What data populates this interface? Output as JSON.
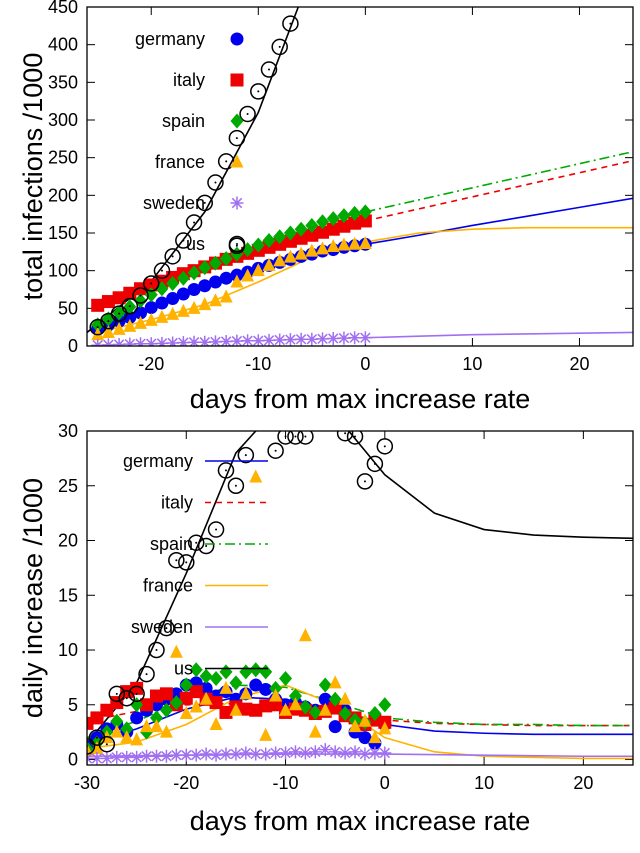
{
  "chart_data": [
    {
      "type": "scatter",
      "xlabel": "days from max increase rate",
      "ylabel": "total infections /1000",
      "xlim": [
        -26,
        25
      ],
      "ylim": [
        0,
        450
      ],
      "xticks": [
        "-20",
        "-10",
        "0",
        "10",
        "20"
      ],
      "xtick_values": [
        -20,
        -10,
        0,
        10,
        20
      ],
      "yticks": [
        "0",
        "50",
        "100",
        "150",
        "200",
        "250",
        "300",
        "350",
        "400",
        "450"
      ],
      "ytick_values": [
        0,
        50,
        100,
        150,
        200,
        250,
        300,
        350,
        400,
        450
      ],
      "legend_position": "top-left",
      "series": [
        {
          "name": "germany",
          "color": "#0000ee",
          "marker": "circle",
          "x": [
            -25,
            -24,
            -23,
            -22,
            -21,
            -20,
            -19,
            -18,
            -17,
            -16,
            -15,
            -14,
            -13,
            -12,
            -11,
            -10,
            -9,
            -8,
            -7,
            -6,
            -5,
            -4,
            -3,
            -2,
            -1,
            0
          ],
          "y": [
            24,
            28,
            33,
            38,
            44,
            51,
            57,
            63,
            69,
            75,
            80,
            85,
            90,
            94,
            98,
            103,
            107,
            111,
            115,
            119,
            122,
            126,
            128,
            131,
            133,
            135
          ],
          "fit_x": [
            0,
            5,
            10,
            15,
            20,
            25
          ],
          "fit_y": [
            135,
            147,
            160,
            172,
            184,
            196
          ],
          "fit_style": "solid"
        },
        {
          "name": "italy",
          "color": "#ee0000",
          "marker": "square",
          "x": [
            -25,
            -24,
            -23,
            -22,
            -21,
            -20,
            -19,
            -18,
            -17,
            -16,
            -15,
            -14,
            -13,
            -12,
            -11,
            -10,
            -9,
            -8,
            -7,
            -6,
            -5,
            -4,
            -3,
            -2,
            -1,
            0
          ],
          "y": [
            54,
            59,
            64,
            70,
            76,
            81,
            86,
            91,
            96,
            100,
            105,
            110,
            115,
            119,
            123,
            127,
            131,
            135,
            139,
            143,
            147,
            151,
            155,
            159,
            163,
            166
          ],
          "fit_x": [
            0,
            5,
            10,
            15,
            20,
            25
          ],
          "fit_y": [
            166,
            182,
            198,
            214,
            230,
            246
          ],
          "fit_style": "dashed"
        },
        {
          "name": "spain",
          "color": "#00aa00",
          "marker": "diamond",
          "x": [
            -25,
            -24,
            -23,
            -22,
            -21,
            -20,
            -19,
            -18,
            -17,
            -16,
            -15,
            -14,
            -13,
            -12,
            -11,
            -10,
            -9,
            -8,
            -7,
            -6,
            -5,
            -4,
            -3,
            -2,
            -1,
            0
          ],
          "y": [
            28,
            36,
            44,
            52,
            60,
            68,
            76,
            83,
            90,
            97,
            104,
            110,
            116,
            122,
            128,
            134,
            140,
            145,
            150,
            155,
            160,
            165,
            169,
            173,
            176,
            178
          ],
          "fit_x": [
            0,
            5,
            10,
            15,
            20,
            25
          ],
          "fit_y": [
            178,
            194,
            210,
            226,
            242,
            258
          ],
          "fit_style": "dashdot"
        },
        {
          "name": "france",
          "color": "#ffb300",
          "marker": "triangle",
          "x": [
            -25,
            -24,
            -23,
            -22,
            -21,
            -20,
            -19,
            -18,
            -17,
            -16,
            -15,
            -14,
            -13,
            -12,
            -11,
            -10,
            -9,
            -8,
            -7,
            -6,
            -5,
            -4,
            -3,
            -2,
            -1,
            0
          ],
          "y": [
            15,
            18,
            22,
            26,
            30,
            34,
            38,
            42,
            46,
            50,
            55,
            60,
            65,
            85,
            93,
            100,
            107,
            113,
            118,
            122,
            126,
            129,
            132,
            134,
            135,
            136
          ],
          "fit_x": [
            -25,
            -20,
            -15,
            -10,
            -5,
            0,
            5,
            10,
            15,
            20,
            25
          ],
          "fit_y": [
            18,
            35,
            55,
            85,
            118,
            138,
            150,
            155,
            157,
            157,
            157
          ],
          "fit_style": "solid"
        },
        {
          "name": "sweden",
          "color": "#a070f0",
          "marker": "star",
          "x": [
            -25,
            -24,
            -23,
            -22,
            -21,
            -20,
            -19,
            -18,
            -17,
            -16,
            -15,
            -14,
            -13,
            -12,
            -11,
            -10,
            -9,
            -8,
            -7,
            -6,
            -5,
            -4,
            -3,
            -2,
            -1,
            0
          ],
          "y": [
            1,
            1.5,
            2,
            2.5,
            3,
            3,
            3.5,
            4,
            4.5,
            5,
            5,
            5.5,
            6,
            6.5,
            7,
            7,
            7.5,
            8,
            8.5,
            9,
            9,
            9.5,
            10,
            10.5,
            11,
            11
          ],
          "fit_x": [
            0,
            5,
            10,
            15,
            20,
            25
          ],
          "fit_y": [
            11,
            13,
            15,
            16,
            17,
            18
          ],
          "fit_style": "solid"
        },
        {
          "name": "us",
          "color": "#000000",
          "marker": "open-circle",
          "x": [
            -25,
            -24,
            -23,
            -22,
            -21,
            -20,
            -19,
            -18,
            -17,
            -16,
            -15,
            -14,
            -13,
            -12,
            -11,
            -10,
            -9,
            -8,
            -7,
            -12
          ],
          "y": [
            25,
            33,
            43,
            53,
            67,
            83,
            100,
            119,
            140,
            164,
            190,
            217,
            245,
            276,
            308,
            338,
            367,
            397,
            428,
            133
          ],
          "fit_x": [
            -26,
            -20,
            -15,
            -10,
            -6
          ],
          "fit_y": [
            18,
            86,
            178,
            310,
            460
          ],
          "fit_style": "solid"
        }
      ]
    },
    {
      "type": "scatter",
      "xlabel": "days from max increase rate",
      "ylabel": "daily increase /1000",
      "xlim": [
        -30,
        25
      ],
      "ylim": [
        -0.5,
        30
      ],
      "xticks": [
        "-30",
        "-20",
        "-10",
        "0",
        "10",
        "20"
      ],
      "xtick_values": [
        -30,
        -20,
        -10,
        0,
        10,
        20
      ],
      "yticks": [
        "0",
        "5",
        "10",
        "15",
        "20",
        "25",
        "30"
      ],
      "ytick_values": [
        0,
        5,
        10,
        15,
        20,
        25,
        30
      ],
      "legend_position": "top-left",
      "series": [
        {
          "name": "germany",
          "color": "#0000ee",
          "marker": "circle",
          "line_style": "solid",
          "x": [
            -30,
            -29,
            -28,
            -27,
            -26,
            -25,
            -24,
            -23,
            -22,
            -21,
            -20,
            -19,
            -18,
            -17,
            -16,
            -15,
            -14,
            -13,
            -12,
            -11,
            -10,
            -9,
            -8,
            -7,
            -6,
            -5,
            -4,
            -3,
            -2,
            -1,
            0
          ],
          "y": [
            1.2,
            2.0,
            2.8,
            3.2,
            2.5,
            3.8,
            4.5,
            5.0,
            5.5,
            6.0,
            6.8,
            7.0,
            6.5,
            5.8,
            6.2,
            5.5,
            6.0,
            6.8,
            6.4,
            5.5,
            5.0,
            5.2,
            4.8,
            4.5,
            5.5,
            3.0,
            4.5,
            2.5,
            2.0,
            1.5,
            3.2
          ],
          "fit_x": [
            -30,
            -25,
            -20,
            -15,
            -10,
            -5,
            0,
            5,
            10,
            15,
            20,
            25
          ],
          "fit_y": [
            1.4,
            2.8,
            4.6,
            5.7,
            5.5,
            4.4,
            3.2,
            2.6,
            2.4,
            2.3,
            2.3,
            2.3
          ]
        },
        {
          "name": "italy",
          "color": "#ee0000",
          "marker": "square",
          "line_style": "dashed",
          "x": [
            -30,
            -29,
            -28,
            -27,
            -26,
            -25,
            -24,
            -23,
            -22,
            -21,
            -20,
            -19,
            -18,
            -17,
            -16,
            -15,
            -14,
            -13,
            -12,
            -11,
            -10,
            -9,
            -8,
            -7,
            -6,
            -5,
            -4,
            -3,
            -2,
            -1,
            0
          ],
          "y": [
            3.3,
            3.8,
            4.5,
            5.2,
            6.2,
            6.5,
            5.0,
            5.8,
            6.0,
            5.0,
            5.6,
            6.2,
            5.5,
            5.2,
            4.3,
            4.8,
            4.6,
            4.5,
            4.9,
            5.0,
            4.3,
            4.6,
            4.5,
            4.2,
            4.4,
            4.7,
            4.0,
            3.8,
            3.2,
            3.6,
            3.4
          ],
          "fit_x": [
            -30,
            -25,
            -20,
            -15,
            -10,
            -5,
            0,
            5,
            10,
            15,
            20,
            25
          ],
          "fit_y": [
            3.5,
            4.4,
            5.0,
            5.1,
            4.8,
            4.2,
            3.6,
            3.3,
            3.2,
            3.1,
            3.1,
            3.1
          ]
        },
        {
          "name": "spain",
          "color": "#00aa00",
          "marker": "diamond",
          "line_style": "dashdot",
          "x": [
            -30,
            -29,
            -28,
            -27,
            -26,
            -25,
            -24,
            -23,
            -22,
            -21,
            -20,
            -19,
            -18,
            -17,
            -16,
            -15,
            -14,
            -13,
            -12,
            -11,
            -10,
            -9,
            -8,
            -7,
            -6,
            -5,
            -4,
            -3,
            -2,
            -1,
            0
          ],
          "y": [
            1.0,
            1.5,
            2.5,
            3.5,
            2.8,
            5.0,
            2.5,
            3.8,
            4.5,
            5.2,
            6.8,
            8.2,
            7.6,
            7.4,
            8.0,
            7.0,
            8.0,
            8.2,
            8.0,
            6.5,
            7.4,
            5.8,
            4.8,
            4.3,
            6.8,
            5.5,
            4.2,
            3.6,
            3.4,
            4.2,
            5.0
          ],
          "fit_x": [
            -30,
            -25,
            -20,
            -15,
            -10,
            -5,
            0,
            5,
            10,
            15,
            20,
            25
          ],
          "fit_y": [
            2.0,
            3.5,
            5.5,
            6.8,
            6.6,
            5.2,
            3.8,
            3.4,
            3.2,
            3.2,
            3.1,
            3.1
          ]
        },
        {
          "name": "france",
          "color": "#ffb300",
          "marker": "triangle",
          "line_style": "solid",
          "x": [
            -30,
            -29,
            -28,
            -27,
            -26,
            -25,
            -24,
            -23,
            -22,
            -21,
            -20,
            -19,
            -18,
            -17,
            -16,
            -15,
            -14,
            -13,
            -12,
            -11,
            -10,
            -9,
            -8,
            -7,
            -6,
            -5,
            -4,
            -3,
            -2,
            -1,
            0
          ],
          "y": [
            0.8,
            1.0,
            2.0,
            2.5,
            2.0,
            1.8,
            3.0,
            3.0,
            2.5,
            9.8,
            4.2,
            4.8,
            5.5,
            3.2,
            6.5,
            4.5,
            6.0,
            25.8,
            2.2,
            5.8,
            4.5,
            5.0,
            11.3,
            2.5,
            4.5,
            7.0,
            5.5,
            3.0,
            3.5,
            2.0,
            2.8
          ],
          "fit_x": [
            -30,
            -25,
            -20,
            -15,
            -10,
            -5,
            0,
            5,
            10,
            15,
            20,
            25
          ],
          "fit_y": [
            1.0,
            1.6,
            3.2,
            5.6,
            6.8,
            5.0,
            2.0,
            0.7,
            0.3,
            0.2,
            0.1,
            0.1
          ]
        },
        {
          "name": "sweden",
          "color": "#a070f0",
          "marker": "star",
          "line_style": "solid",
          "x": [
            -30,
            -29,
            -28,
            -27,
            -26,
            -25,
            -24,
            -23,
            -22,
            -21,
            -20,
            -19,
            -18,
            -17,
            -16,
            -15,
            -14,
            -13,
            -12,
            -11,
            -10,
            -9,
            -8,
            -7,
            -6,
            -5,
            -4,
            -3,
            -2,
            -1,
            0
          ],
          "y": [
            0.1,
            0.1,
            0.1,
            0.2,
            0.2,
            0.2,
            0.3,
            0.3,
            0.3,
            0.4,
            0.4,
            0.4,
            0.5,
            0.4,
            0.5,
            0.5,
            0.6,
            0.5,
            0.5,
            0.6,
            0.6,
            0.7,
            0.6,
            0.7,
            0.9,
            0.7,
            0.6,
            0.7,
            0.5,
            0.6,
            0.6
          ],
          "fit_x": [
            -30,
            -20,
            -10,
            0,
            10,
            20,
            25
          ],
          "fit_y": [
            0.3,
            0.4,
            0.5,
            0.5,
            0.4,
            0.3,
            0.3
          ]
        },
        {
          "name": "us",
          "color": "#000000",
          "marker": "open-circle",
          "line_style": "solid",
          "x": [
            -30,
            -29,
            -28,
            -27,
            -26,
            -25,
            -24,
            -23,
            -22,
            -21,
            -20,
            -19,
            -18,
            -17,
            -16,
            -15,
            -14,
            -11,
            -10,
            -9,
            -8,
            -4,
            -3,
            -2,
            -1,
            0
          ],
          "y": [
            1.2,
            2.0,
            1.4,
            6.0,
            5.6,
            6.0,
            7.8,
            10.0,
            12.0,
            18.2,
            18.0,
            19.8,
            19.5,
            21.0,
            26.4,
            25.0,
            27.8,
            28.2,
            29.5,
            29.5,
            29.5,
            29.8,
            29.5,
            25.4,
            27.0,
            28.6
          ],
          "fit_x": [
            -30,
            -25,
            -20,
            -15,
            -10,
            -5,
            0,
            5,
            10,
            15,
            20,
            25
          ],
          "fit_y": [
            1.5,
            7.0,
            17.0,
            28.0,
            33.0,
            31.5,
            26.0,
            22.5,
            21.0,
            20.5,
            20.3,
            20.2
          ]
        }
      ]
    }
  ]
}
